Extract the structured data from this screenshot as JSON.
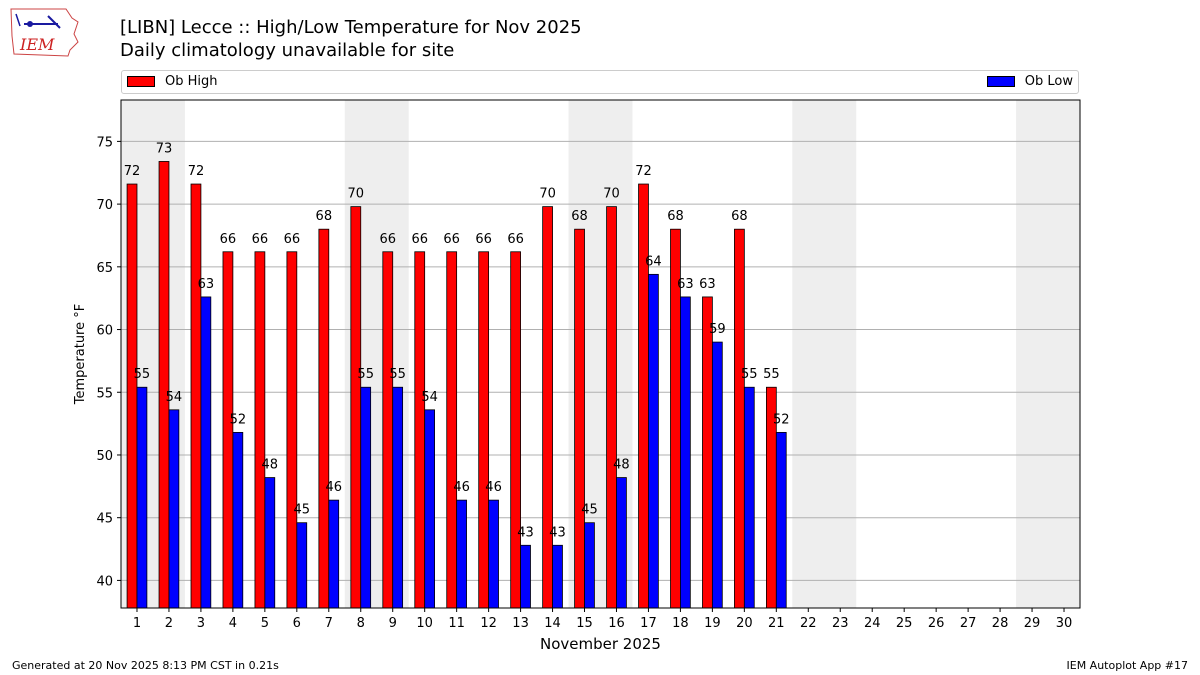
{
  "header": {
    "title": "[LIBN] Lecce :: High/Low Temperature for Nov 2025",
    "subtitle": "Daily climatology unavailable for site",
    "logo_text": "IEM"
  },
  "legend": {
    "high_label": "Ob High",
    "low_label": "Ob Low",
    "placement": "top, above plot"
  },
  "footer": {
    "left": "Generated at 20 Nov 2025 8:13 PM CST in 0.21s",
    "right": "IEM Autoplot App #17"
  },
  "colors": {
    "high": "#ff0000",
    "low": "#0000ff",
    "weekend_shade": "#eeeeee",
    "grid": "#b0b0b0"
  },
  "chart_data": {
    "type": "bar",
    "title": "[LIBN] Lecce :: High/Low Temperature for Nov 2025",
    "subtitle": "Daily climatology unavailable for site",
    "xlabel": "November 2025",
    "ylabel": "Temperature °F",
    "categories": [
      "1",
      "2",
      "3",
      "4",
      "5",
      "6",
      "7",
      "8",
      "9",
      "10",
      "11",
      "12",
      "13",
      "14",
      "15",
      "16",
      "17",
      "18",
      "19",
      "20",
      "21",
      "22",
      "23",
      "24",
      "25",
      "26",
      "27",
      "28",
      "29",
      "30"
    ],
    "ylim": [
      37.8,
      78.3
    ],
    "yticks": [
      40,
      45,
      50,
      55,
      60,
      65,
      70,
      75
    ],
    "grid": "horizontal",
    "shaded_days": [
      [
        1,
        2
      ],
      [
        8,
        9
      ],
      [
        15,
        16
      ],
      [
        22,
        23
      ],
      [
        29,
        30
      ]
    ],
    "series": [
      {
        "name": "Ob High",
        "color": "#ff0000",
        "values": [
          71.6,
          73.4,
          71.6,
          66.2,
          66.2,
          66.2,
          68.0,
          69.8,
          66.2,
          66.2,
          66.2,
          66.2,
          66.2,
          69.8,
          68.0,
          69.8,
          71.6,
          68.0,
          62.6,
          68.0,
          55.4,
          null,
          null,
          null,
          null,
          null,
          null,
          null,
          null,
          null
        ],
        "labels": [
          "72",
          "73",
          "72",
          "66",
          "66",
          "66",
          "68",
          "70",
          "66",
          "66",
          "66",
          "66",
          "66",
          "70",
          "68",
          "70",
          "72",
          "68",
          "63",
          "68",
          "55",
          "",
          "",
          "",
          "",
          "",
          "",
          "",
          "",
          ""
        ]
      },
      {
        "name": "Ob Low",
        "color": "#0000ff",
        "values": [
          55.4,
          53.6,
          62.6,
          51.8,
          48.2,
          44.6,
          46.4,
          55.4,
          55.4,
          53.6,
          46.4,
          46.4,
          42.8,
          42.8,
          44.6,
          48.2,
          64.4,
          62.6,
          59.0,
          55.4,
          51.8,
          null,
          null,
          null,
          null,
          null,
          null,
          null,
          null,
          null
        ],
        "labels": [
          "55",
          "54",
          "63",
          "52",
          "48",
          "45",
          "46",
          "55",
          "55",
          "54",
          "46",
          "46",
          "43",
          "43",
          "45",
          "48",
          "64",
          "63",
          "59",
          "55",
          "52",
          "",
          "",
          "",
          "",
          "",
          "",
          "",
          "",
          ""
        ]
      }
    ]
  }
}
